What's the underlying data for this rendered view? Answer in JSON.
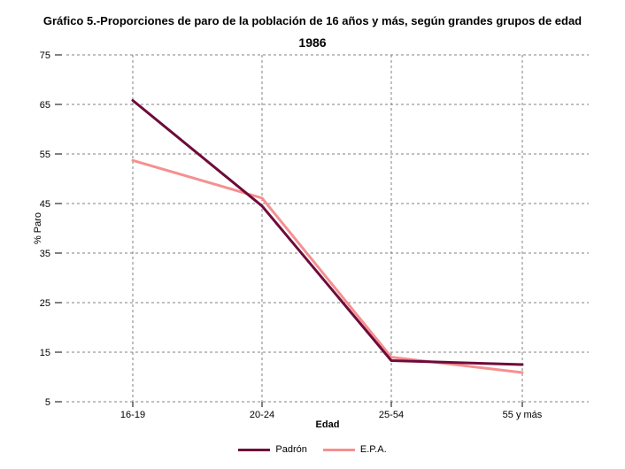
{
  "title": "Gráfico 5.-Proporciones de paro de la población de 16 años y más, según grandes grupos de edad",
  "chart_data": {
    "type": "line",
    "title": "1986",
    "xlabel": "Edad",
    "ylabel": "% Paro",
    "categories": [
      "16-19",
      "20-24",
      "25-54",
      "55 y más"
    ],
    "ylim": [
      5,
      75
    ],
    "yticks": [
      5,
      15,
      25,
      35,
      45,
      55,
      65,
      75
    ],
    "grid": true,
    "legend_position": "bottom",
    "series": [
      {
        "name": "Padrón",
        "color": "#6e0b3a",
        "values": [
          65.8,
          44.5,
          13.3,
          12.5
        ]
      },
      {
        "name": "E.P.A.",
        "color": "#f59090",
        "values": [
          53.7,
          46.1,
          14.0,
          10.9
        ]
      }
    ]
  }
}
